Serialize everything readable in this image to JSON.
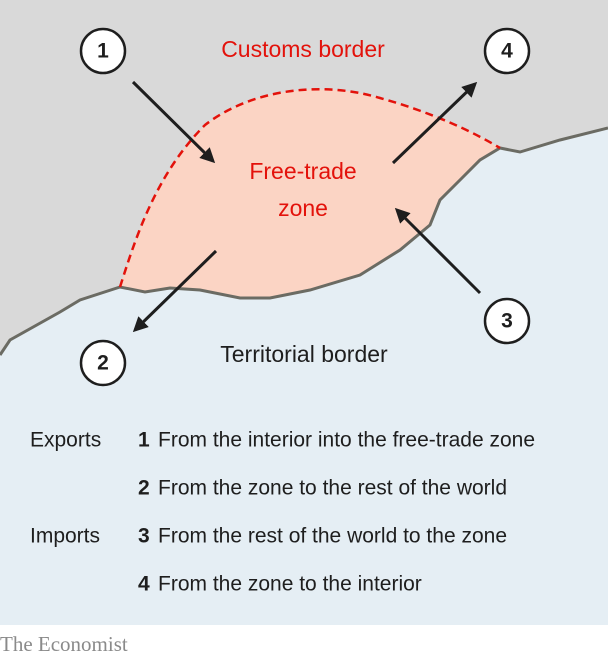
{
  "diagram": {
    "labels": {
      "customs_border": "Customs border",
      "zone": [
        "Free-trade",
        "zone"
      ],
      "territorial_border": "Territorial border"
    },
    "markers": [
      "1",
      "2",
      "3",
      "4"
    ]
  },
  "legend": {
    "groups": [
      {
        "label": "Exports",
        "items": [
          {
            "number": "1",
            "text": "From the interior into the free-trade zone"
          },
          {
            "number": "2",
            "text": "From the zone to the rest of the world"
          }
        ]
      },
      {
        "label": "Imports",
        "items": [
          {
            "number": "3",
            "text": "From the rest of the world to the zone"
          },
          {
            "number": "4",
            "text": "From the zone to the interior"
          }
        ]
      }
    ]
  },
  "footer": {
    "source": "The Economist"
  }
}
